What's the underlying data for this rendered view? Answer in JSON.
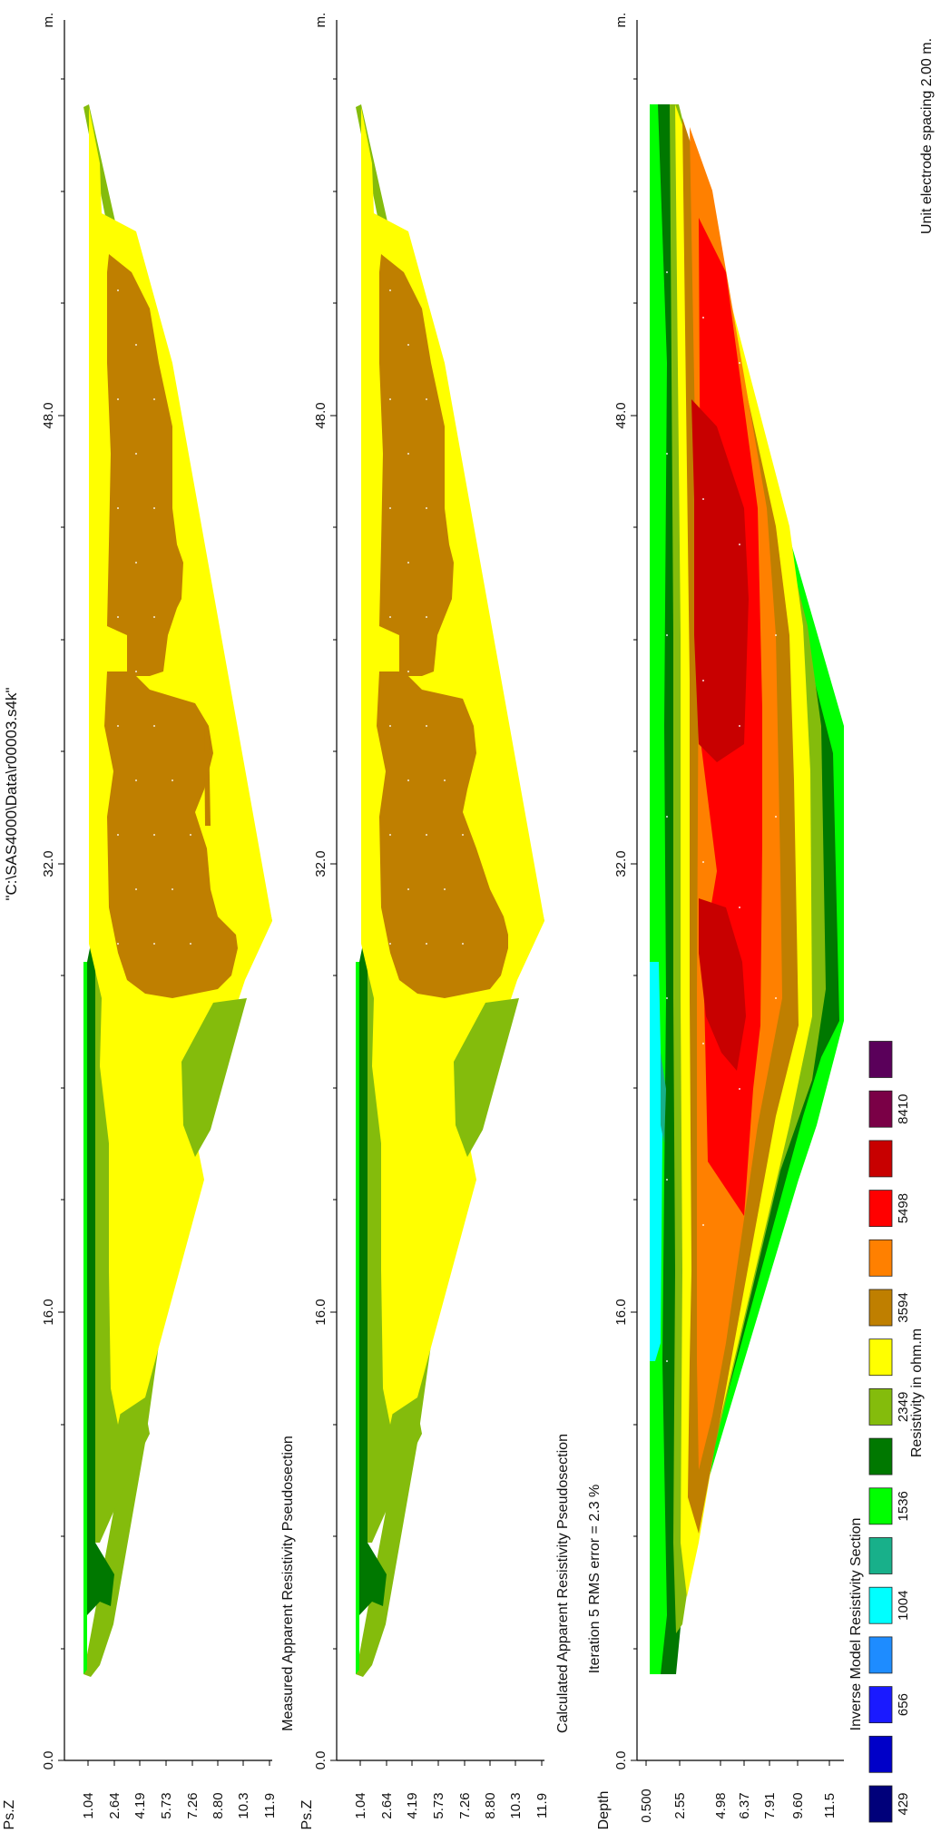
{
  "title": "\"C:\\SAS4000\\Data\\r00003.s4k\"",
  "spacing_note": "Unit electrode spacing 2.00 m.",
  "distance_axis": {
    "unit": "m.",
    "ticks": [
      "0.0",
      "16.0",
      "32.0",
      "48.0"
    ],
    "range": [
      0,
      60
    ]
  },
  "panels": [
    {
      "id": "measured",
      "title": "Measured Apparent Resistivity Pseudosection",
      "depth_label": "Ps.Z",
      "depth_ticks": [
        "1.04",
        "2.64",
        "4.19",
        "5.73",
        "7.26",
        "8.80",
        "10.3",
        "11.9"
      ]
    },
    {
      "id": "calculated",
      "title": "Calculated Apparent Resistivity Pseudosection",
      "depth_label": "Ps.Z",
      "depth_ticks": [
        "1.04",
        "2.64",
        "4.19",
        "5.73",
        "7.26",
        "8.80",
        "10.3",
        "11.9"
      ]
    },
    {
      "id": "inverse",
      "title": "Iteration 5 RMS error = 2.3 %",
      "depth_label": "Depth",
      "depth_ticks": [
        "0.500",
        "2.55",
        "4.98",
        "6.37",
        "7.91",
        "9.60",
        "11.5"
      ]
    }
  ],
  "legend": {
    "title": "Inverse Model Resistivity Section",
    "unit": "Resistivity in ohm.m",
    "labels": [
      "429",
      "656",
      "1004",
      "1536",
      "2349",
      "3594",
      "5498",
      "8410"
    ],
    "colors": [
      "#00007a",
      "#0000c8",
      "#1a1aff",
      "#1e8cff",
      "#00ffff",
      "#18b08a",
      "#00ff00",
      "#007800",
      "#84bc0c",
      "#ffff00",
      "#bf7f00",
      "#ff8000",
      "#ff0000",
      "#c80000",
      "#7a0046",
      "#5a005a"
    ]
  },
  "chart_data": {
    "type": "heatmap",
    "title": "\"C:\\SAS4000\\Data\\r00003.s4k\"",
    "xlabel": "m.",
    "x_ticks": [
      0.0,
      16.0,
      32.0,
      48.0
    ],
    "xlim": [
      0,
      60
    ],
    "legend_placement": "bottom",
    "color_scale": {
      "unit": "Resistivity in ohm.m",
      "breaks": [
        429,
        656,
        1004,
        1536,
        2349,
        3594,
        5498,
        8410
      ]
    },
    "panels": [
      {
        "name": "Measured Apparent Resistivity Pseudosection",
        "ylabel": "Ps.Z",
        "y_ticks": [
          1.04,
          2.64,
          4.19,
          5.73,
          7.26,
          8.8,
          10.3,
          11.9
        ],
        "coverage_x": [
          3,
          57
        ],
        "layers": [
          {
            "depth": 1.04,
            "values": [
              2000,
              1900,
              2100,
              2300,
              2500,
              2700,
              2900,
              3200,
              3500,
              3300,
              2900,
              2600,
              2700,
              2400
            ]
          },
          {
            "depth": 2.64,
            "values": [
              2400,
              2600,
              2800,
              3000,
              3300,
              3700,
              3800,
              4000,
              4100,
              3900,
              3700,
              3500,
              3000
            ]
          },
          {
            "depth": 4.19,
            "values": [
              2800,
              3000,
              3300,
              3400,
              3600,
              4100,
              4000,
              4200,
              4300,
              4100,
              3800,
              3300
            ]
          },
          {
            "depth": 5.73,
            "values": [
              3000,
              3200,
              3300,
              3400,
              3700,
              4200,
              4100,
              4100,
              4000,
              3700,
              3200
            ]
          },
          {
            "depth": 7.26,
            "values": [
              3200,
              3300,
              3200,
              3300,
              3800,
              4300,
              3800,
              3600,
              3400,
              3200
            ]
          },
          {
            "depth": 8.8,
            "values": [
              3300,
              3200,
              3000,
              3300,
              3700,
              3700,
              3400,
              3300,
              3200
            ]
          },
          {
            "depth": 10.3,
            "values": [
              3100,
              2900,
              3000,
              3400,
              3500,
              3400,
              3300
            ]
          },
          {
            "depth": 11.9,
            "values": [
              3000,
              3200,
              3300
            ]
          }
        ]
      },
      {
        "name": "Calculated Apparent Resistivity Pseudosection",
        "ylabel": "Ps.Z",
        "y_ticks": [
          1.04,
          2.64,
          4.19,
          5.73,
          7.26,
          8.8,
          10.3,
          11.9
        ],
        "coverage_x": [
          3,
          57
        ],
        "layers": [
          {
            "depth": 1.04,
            "values": [
              2100,
              2000,
              2200,
              2400,
              2600,
              2800,
              3000,
              3300,
              3500,
              3300,
              3000,
              2700,
              2600,
              2400
            ]
          },
          {
            "depth": 2.64,
            "values": [
              2500,
              2700,
              2900,
              3100,
              3400,
              3700,
              3800,
              4000,
              4100,
              3900,
              3700,
              3400,
              2900
            ]
          },
          {
            "depth": 4.19,
            "values": [
              2800,
              3000,
              3300,
              3400,
              3600,
              4100,
              4100,
              4200,
              4200,
              4100,
              3800,
              3300
            ]
          },
          {
            "depth": 5.73,
            "values": [
              3000,
              3200,
              3300,
              3400,
              3700,
              4200,
              4100,
              4100,
              4000,
              3700,
              3200
            ]
          },
          {
            "depth": 7.26,
            "values": [
              3200,
              3300,
              3200,
              3300,
              3800,
              4300,
              3900,
              3600,
              3400,
              3200
            ]
          },
          {
            "depth": 8.8,
            "values": [
              3300,
              3200,
              3000,
              3300,
              3700,
              3700,
              3400,
              3300,
              3200
            ]
          },
          {
            "depth": 10.3,
            "values": [
              3100,
              2900,
              3000,
              3400,
              3500,
              3400,
              3300
            ]
          },
          {
            "depth": 11.9,
            "values": [
              3000,
              3200,
              3300
            ]
          }
        ]
      },
      {
        "name": "Iteration 5 RMS error = 2.3 %",
        "ylabel": "Depth",
        "y_ticks": [
          0.5,
          2.55,
          4.98,
          6.37,
          7.91,
          9.6,
          11.5
        ],
        "coverage_x": [
          3,
          57
        ],
        "rms_error_percent": 2.3,
        "iteration": 5,
        "layers": [
          {
            "depth": 0.5,
            "values": [
              1800,
              1300,
              1100,
              1000,
              900,
              900,
              1000,
              1200,
              1300,
              1400,
              1500,
              1600,
              1600,
              1700
            ]
          },
          {
            "depth": 2.55,
            "values": [
              2800,
              2900,
              2600,
              2300,
              2000,
              1700,
              2200,
              2900,
              3000,
              2800,
              2700,
              2600,
              2500,
              2400
            ]
          },
          {
            "depth": 4.98,
            "values": [
              3900,
              5300,
              5400,
              5500,
              6200,
              8400,
              6400,
              6000,
              7000,
              8200,
              6000,
              4500,
              3400
            ]
          },
          {
            "depth": 6.37,
            "values": [
              3800,
              5200,
              5500,
              5600,
              6500,
              8200,
              6300,
              6200,
              7500,
              8000,
              5500,
              4000
            ]
          },
          {
            "depth": 7.91,
            "values": [
              3500,
              4400,
              5400,
              5800,
              6000,
              5600,
              5000,
              4800,
              4400,
              3800
            ]
          },
          {
            "depth": 9.6,
            "values": [
              3100,
              3700,
              3500,
              3200,
              3000,
              2600,
              2400
            ]
          },
          {
            "depth": 11.5,
            "values": [
              2400,
              2100,
              1700,
              1600
            ]
          }
        ]
      }
    ]
  }
}
